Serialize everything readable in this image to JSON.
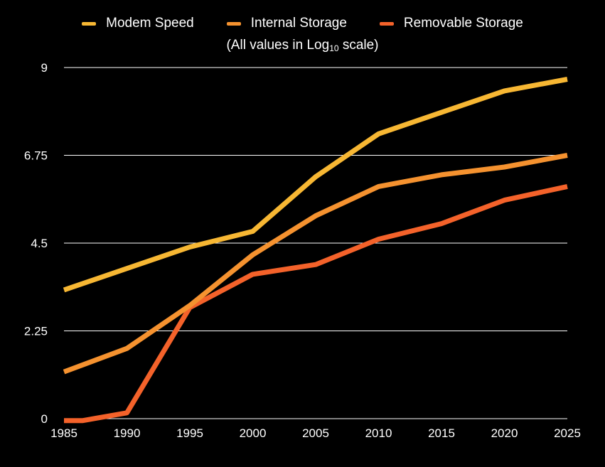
{
  "chart_data": {
    "type": "line",
    "subtitle_pre": "(All values in Log",
    "subtitle_sub": "10",
    "subtitle_post": " scale)",
    "x": [
      1985,
      1990,
      1995,
      2000,
      2005,
      2010,
      2015,
      2020,
      2025
    ],
    "x_ticks": [
      "1985",
      "1990",
      "1995",
      "2000",
      "2005",
      "2010",
      "2015",
      "2020",
      "2025"
    ],
    "xlim": [
      1985,
      2025
    ],
    "y_ticks": [
      "0",
      "2.25",
      "4.5",
      "6.75",
      "9"
    ],
    "y_tick_values": [
      0,
      2.25,
      4.5,
      6.75,
      9
    ],
    "ylim": [
      0,
      9
    ],
    "grid": "horizontal",
    "legend_position": "top-center",
    "series": [
      {
        "name": "Modem Speed",
        "color": "#f7b733",
        "points": [
          [
            1985,
            3.3
          ],
          [
            1990,
            3.85
          ],
          [
            1995,
            4.4
          ],
          [
            2000,
            4.8
          ],
          [
            2005,
            6.2
          ],
          [
            2010,
            7.3
          ],
          [
            2015,
            7.85
          ],
          [
            2020,
            8.4
          ],
          [
            2025,
            8.7
          ]
        ]
      },
      {
        "name": "Internal Storage",
        "color": "#f5922f",
        "points": [
          [
            1985,
            1.2
          ],
          [
            1990,
            1.8
          ],
          [
            1995,
            2.9
          ],
          [
            2000,
            4.2
          ],
          [
            2005,
            5.2
          ],
          [
            2010,
            5.95
          ],
          [
            2015,
            6.25
          ],
          [
            2020,
            6.45
          ],
          [
            2025,
            6.75
          ]
        ]
      },
      {
        "name": "Removable Storage",
        "color": "#f4622a",
        "points": [
          [
            1985,
            -0.05
          ],
          [
            1986.5,
            -0.05
          ],
          [
            1990,
            0.15
          ],
          [
            1995,
            2.85
          ],
          [
            2000,
            3.7
          ],
          [
            2005,
            3.95
          ],
          [
            2010,
            4.6
          ],
          [
            2015,
            5.0
          ],
          [
            2020,
            5.6
          ],
          [
            2025,
            5.95
          ]
        ]
      }
    ]
  }
}
